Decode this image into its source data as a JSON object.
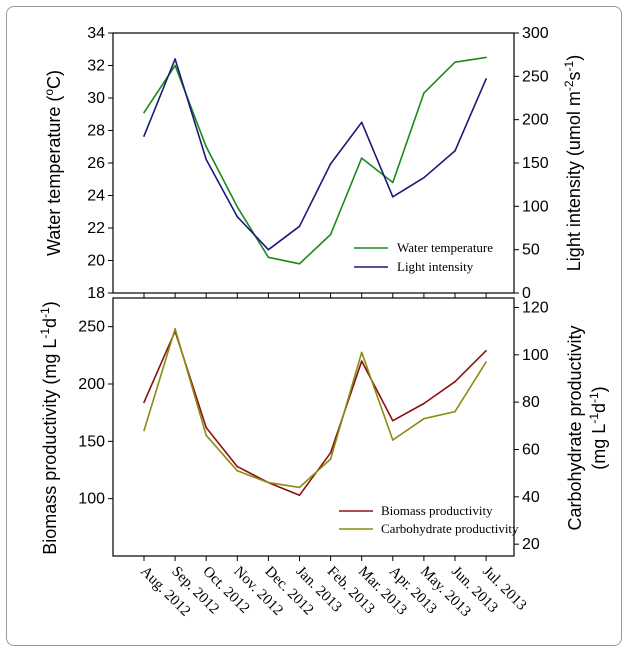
{
  "chart_data": [
    {
      "type": "line",
      "categories": [
        "Aug. 2012",
        "Sep. 2012",
        "Oct. 2012",
        "Nov. 2012",
        "Dec. 2012",
        "Jan. 2013",
        "Feb. 2013",
        "Mar. 2013",
        "Apr. 2013",
        "May. 2013",
        "Jun. 2013",
        "Jul. 2013"
      ],
      "ylabel_left": "Water temperature (ºC)",
      "ylabel_left_base": "Water temperature (",
      "ylabel_left_sup": "o",
      "ylabel_left_tail": "C)",
      "ylabel_right": "Light intensity (umol m-2s-1)",
      "ylabel_right_base": "Light intensity (umol m",
      "ylabel_right_sup1": "-2",
      "ylabel_right_mid": "s",
      "ylabel_right_sup2": "-1",
      "ylabel_right_tail": ")",
      "ylim_left": [
        18,
        34
      ],
      "yticks_left": [
        "18",
        "20",
        "22",
        "24",
        "26",
        "28",
        "30",
        "32",
        "34"
      ],
      "ylim_right": [
        0,
        300
      ],
      "yticks_right": [
        "0",
        "50",
        "100",
        "150",
        "200",
        "250",
        "300"
      ],
      "legend_position": "bottom-right",
      "series": [
        {
          "name": "Water temperature",
          "axis": "left",
          "color": "#1a8a1a",
          "values": [
            29.1,
            32.0,
            27.0,
            23.3,
            20.2,
            19.8,
            21.6,
            26.3,
            24.8,
            30.3,
            32.2,
            32.5
          ]
        },
        {
          "name": "Light intensity",
          "axis": "right",
          "color": "#1a1a7a",
          "values": [
            181,
            270,
            154,
            88,
            50,
            77,
            149,
            197,
            111,
            133,
            164,
            247
          ]
        }
      ]
    },
    {
      "type": "line",
      "categories": [
        "Aug. 2012",
        "Sep. 2012",
        "Oct. 2012",
        "Nov. 2012",
        "Dec. 2012",
        "Jan. 2013",
        "Feb. 2013",
        "Mar. 2013",
        "Apr. 2013",
        "May. 2013",
        "Jun. 2013",
        "Jul. 2013"
      ],
      "ylabel_left": "Biomass productivity (mg L-1d-1)",
      "ylabel_left_base": "Biomass productivity (mg L",
      "ylabel_left_sup1": "-1",
      "ylabel_left_mid": "d",
      "ylabel_left_sup2": "-1",
      "ylabel_left_tail": ")",
      "ylabel_right_line1": "Carbohydrate productivity",
      "ylabel_right_line2_base": "(mg L",
      "ylabel_right_line2_sup1": "-1",
      "ylabel_right_line2_mid": "d",
      "ylabel_right_line2_sup2": "-1",
      "ylabel_right_line2_tail": ")",
      "ylim_left": [
        50,
        275
      ],
      "yticks_left": [
        "100",
        "150",
        "200",
        "250"
      ],
      "ylim_right": [
        15,
        124
      ],
      "yticks_right": [
        "20",
        "40",
        "60",
        "80",
        "100",
        "120"
      ],
      "legend_position": "bottom-right",
      "series": [
        {
          "name": "Biomass productivity",
          "axis": "left",
          "color": "#8b1010",
          "values": [
            184,
            246,
            162,
            128,
            114,
            103,
            140,
            220,
            168,
            183,
            202,
            229
          ]
        },
        {
          "name": "Carbohydrate productivity",
          "axis": "right",
          "color": "#8b8b12",
          "values": [
            68,
            111,
            66,
            51,
            46,
            44,
            56,
            101,
            64,
            73,
            76,
            97
          ]
        }
      ]
    }
  ]
}
